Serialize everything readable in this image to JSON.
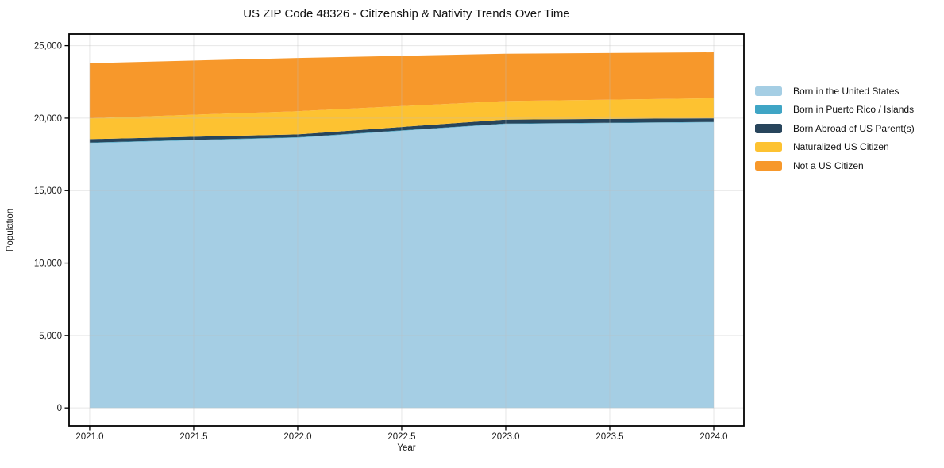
{
  "title": "US ZIP Code 48326 - Citizenship & Nativity Trends Over Time",
  "chart_data": {
    "type": "area",
    "stacked": true,
    "title": "US ZIP Code 48326 - Citizenship & Nativity Trends Over Time",
    "xlabel": "Year",
    "ylabel": "Population",
    "x": [
      2021,
      2022,
      2023,
      2024
    ],
    "series": [
      {
        "name": "Born in the United States",
        "color": "#a5cee4",
        "values": [
          18280,
          18650,
          19600,
          19710
        ]
      },
      {
        "name": "Born in Puerto Rico / Islands",
        "color": "#3fa5c5",
        "values": [
          30,
          30,
          30,
          30
        ]
      },
      {
        "name": "Born Abroad of US Parent(s)",
        "color": "#28455c",
        "values": [
          240,
          200,
          270,
          250
        ]
      },
      {
        "name": "Naturalized US Citizen",
        "color": "#fdc231",
        "values": [
          1440,
          1600,
          1280,
          1380
        ]
      },
      {
        "name": "Not a US Citizen",
        "color": "#f7982b",
        "values": [
          3800,
          3670,
          3270,
          3170
        ]
      }
    ],
    "stack_totals": [
      23790,
      24150,
      24450,
      24540
    ],
    "xlim": [
      2020.901,
      2024.145
    ],
    "ylim": [
      -1250,
      25800
    ],
    "x_ticks": [
      2021.0,
      2021.5,
      2022.0,
      2022.5,
      2023.0,
      2023.5,
      2024.0
    ],
    "x_ticklabels": [
      "2021.0",
      "2021.5",
      "2022.0",
      "2022.5",
      "2023.0",
      "2023.5",
      "2024.0"
    ],
    "y_ticks": [
      0,
      5000,
      10000,
      15000,
      20000,
      25000
    ],
    "y_ticklabels": [
      "0",
      "5,000",
      "10,000",
      "15,000",
      "20,000",
      "25,000"
    ],
    "grid": true,
    "legend_position": "center right outside",
    "colors": {
      "frame": "#000000",
      "gridline": "#bcbcbc",
      "tick_text": "#1a1a1a",
      "background": "#ffffff"
    }
  }
}
